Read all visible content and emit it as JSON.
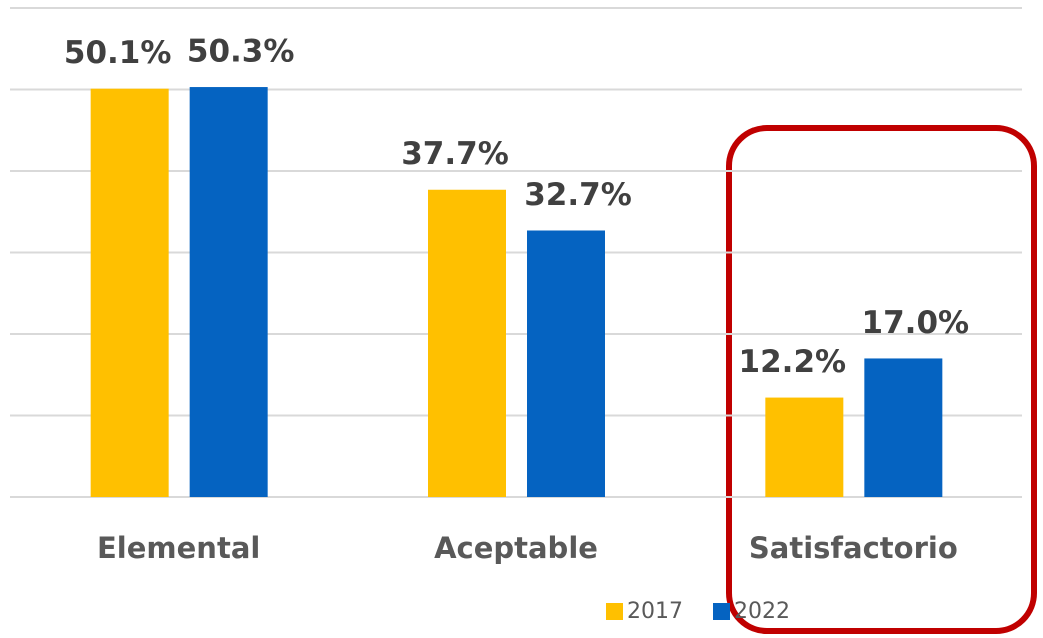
{
  "chart_data": {
    "type": "bar",
    "categories": [
      "Elemental",
      "Aceptable",
      "Satisfactorio"
    ],
    "series": [
      {
        "name": "2017",
        "color": "#FFC000",
        "values": [
          50.1,
          37.7,
          12.2
        ],
        "value_labels": [
          "50.1%",
          "37.7%",
          "12.2%"
        ]
      },
      {
        "name": "2022",
        "color": "#0563C1",
        "values": [
          50.3,
          32.7,
          17.0
        ],
        "value_labels": [
          "50.3%",
          "32.7%",
          "17.0%"
        ]
      }
    ],
    "ylim": [
      0,
      60
    ],
    "yticks": [
      0,
      10,
      20,
      30,
      40,
      50,
      60
    ],
    "grid": true,
    "legend": "bottom"
  }
}
